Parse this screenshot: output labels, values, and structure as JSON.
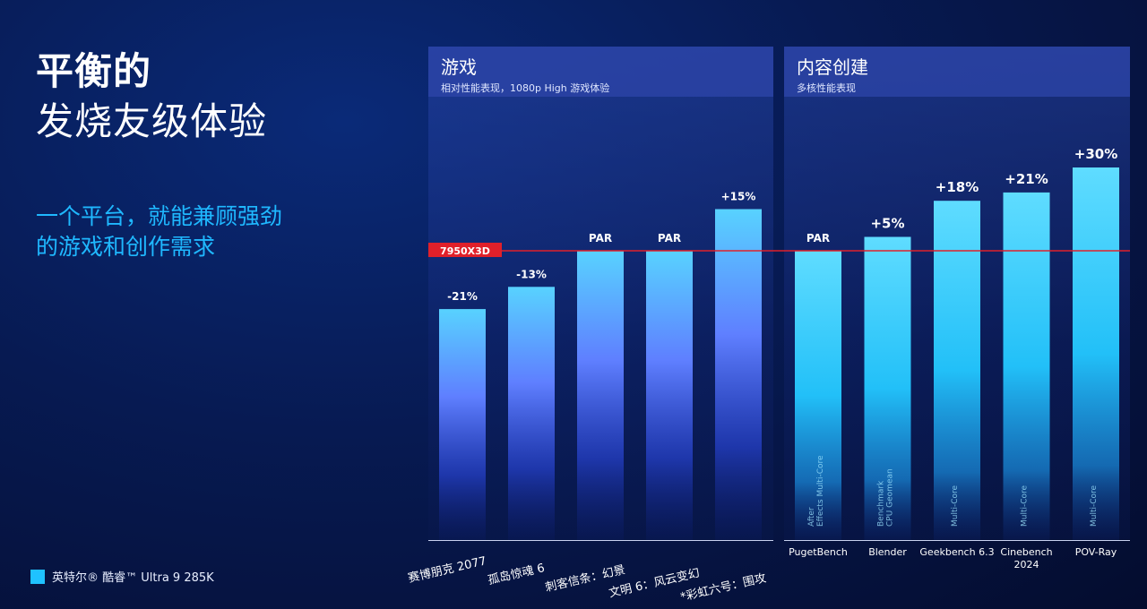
{
  "headline": {
    "line1": "平衡的",
    "line2": "发烧友级体验"
  },
  "subheadline": {
    "line1": "一个平台，就能兼顾强劲",
    "line2": "的游戏和创作需求"
  },
  "legend": {
    "label": "英特尔® 酷睿™ Ultra 9 285K",
    "color": "#1fc2ff"
  },
  "chart_data": [
    {
      "type": "bar",
      "title": "游戏",
      "subtitle": "相对性能表现，1080p High 游戏体验",
      "baseline_label": "7950X3D",
      "baseline_value": 100,
      "categories": [
        "赛博朋克 2077",
        "孤岛惊魂 6",
        "刺客信条：幻景",
        "文明 6：风云变幻",
        "*彩虹六号：围攻"
      ],
      "values": [
        79,
        87,
        100,
        100,
        115
      ],
      "data_labels": [
        "-21%",
        "-13%",
        "PAR",
        "PAR",
        "+15%"
      ],
      "bar_color_top": "#58d2ff",
      "bar_color_bottom": "#4a5dff"
    },
    {
      "type": "bar",
      "title": "内容创建",
      "subtitle": "多核性能表现",
      "baseline_value": 100,
      "categories": [
        "PugetBench",
        "Blender",
        "Geekbench 6.3",
        "Cinebench 2024",
        "POV-Ray"
      ],
      "inner_labels": [
        "After Effects Multi-Core",
        "Benchmark CPU Geomean",
        "Multi-Core",
        "Multi-Core",
        "Multi-Core"
      ],
      "values": [
        100,
        105,
        118,
        121,
        130
      ],
      "data_labels": [
        "PAR",
        "+5%",
        "+18%",
        "+21%",
        "+30%"
      ],
      "bar_color_top": "#5ad8ff",
      "bar_color_bottom": "#22b8f5"
    }
  ]
}
